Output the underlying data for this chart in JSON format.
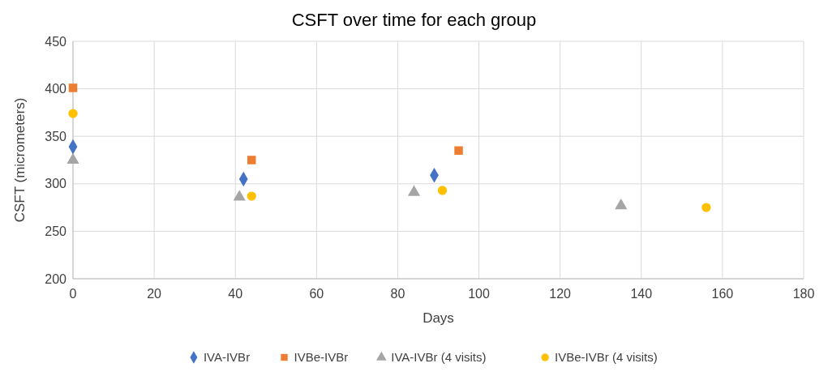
{
  "chart_data": {
    "type": "scatter",
    "title": "CSFT over time for each group",
    "xlabel": "Days",
    "ylabel": "CSFT (micrometers)",
    "xlim": [
      0,
      180
    ],
    "xticks": [
      0,
      20,
      40,
      60,
      80,
      100,
      120,
      140,
      160,
      180
    ],
    "ylim": [
      200,
      450
    ],
    "yticks": [
      200,
      250,
      300,
      350,
      400,
      450
    ],
    "grid": true,
    "legend": "bottom",
    "series": [
      {
        "name": "IVA-IVBr",
        "color": "#4472c4",
        "marker": "diamond",
        "x": [
          0,
          42,
          89
        ],
        "values": [
          339,
          305,
          309
        ]
      },
      {
        "name": "IVBe-IVBr",
        "color": "#ed7d31",
        "marker": "square",
        "x": [
          0,
          44,
          95
        ],
        "values": [
          401,
          325,
          335
        ]
      },
      {
        "name": "IVA-IVBr (4 visits)",
        "color": "#a5a5a5",
        "marker": "triangle",
        "x": [
          0,
          41,
          84,
          135
        ],
        "values": [
          325,
          286,
          291,
          277
        ]
      },
      {
        "name": "IVBe-IVBr (4 visits)",
        "color": "#ffc000",
        "marker": "circle",
        "x": [
          0,
          44,
          91,
          156
        ],
        "values": [
          374,
          287,
          293,
          275
        ]
      }
    ]
  }
}
